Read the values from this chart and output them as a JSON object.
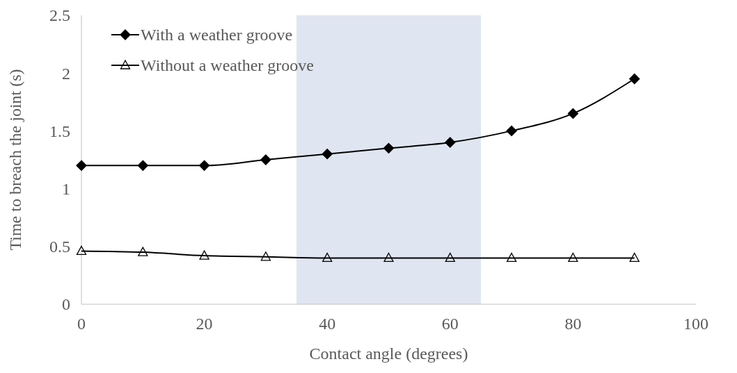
{
  "chart_data": {
    "type": "line",
    "xlabel": "Contact angle  (degrees)",
    "ylabel": "Time to breach the joint  (s)",
    "x": [
      0,
      10,
      20,
      30,
      40,
      50,
      60,
      70,
      80,
      90
    ],
    "series": [
      {
        "name": "With a weather groove",
        "color": "#000000",
        "marker": "diamond",
        "values": [
          1.2,
          1.2,
          1.2,
          1.25,
          1.3,
          1.35,
          1.4,
          1.5,
          1.65,
          1.95
        ]
      },
      {
        "name": "Without a weather groove",
        "color": "#000000",
        "marker": "triangle",
        "values": [
          0.46,
          0.45,
          0.42,
          0.41,
          0.4,
          0.4,
          0.4,
          0.4,
          0.4,
          0.4
        ]
      }
    ],
    "xlim": [
      0,
      100
    ],
    "xticks": [
      0,
      20,
      40,
      60,
      80,
      100
    ],
    "ylim": [
      0,
      2.5
    ],
    "yticks": [
      0,
      0.5,
      1,
      1.5,
      2,
      2.5
    ],
    "bands": [
      {
        "axis": "x",
        "from": 35,
        "to": 65,
        "color": "#dfe6f1"
      }
    ],
    "grid": false,
    "legend": "top left",
    "line_style": "solid"
  }
}
